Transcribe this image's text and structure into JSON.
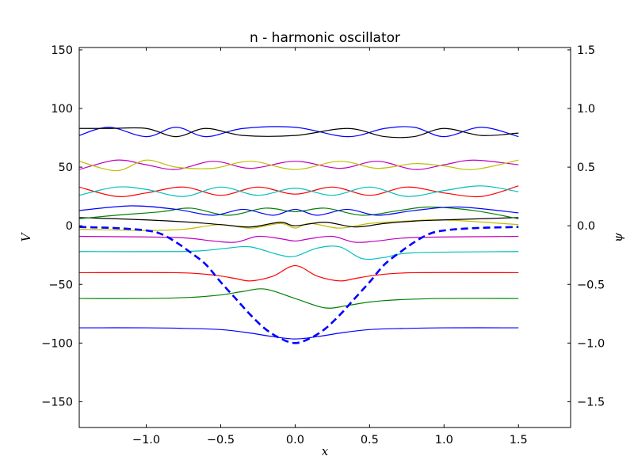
{
  "chart_data": {
    "type": "line",
    "title": "n - harmonic oscillator",
    "xlabel": "x",
    "ylabel": "V",
    "y2label": "ψ",
    "xlim": [
      -1.45,
      1.85
    ],
    "ylim": [
      -172,
      152
    ],
    "y2lim": [
      -1.72,
      1.52
    ],
    "x_ticks": [
      -1.0,
      -0.5,
      0.0,
      0.5,
      1.0,
      1.5
    ],
    "x_tick_labels": [
      "−1.0",
      "−0.5",
      "0.0",
      "0.5",
      "1.0",
      "1.5"
    ],
    "y_ticks": [
      150,
      100,
      50,
      0,
      -50,
      -100,
      -150
    ],
    "y_tick_labels": [
      "150",
      "100",
      "50",
      "0",
      "−50",
      "−100",
      "−150"
    ],
    "y2_ticks": [
      1.5,
      1.0,
      0.5,
      0.0,
      -0.5,
      -1.0,
      -1.5
    ],
    "y2_tick_labels": [
      "1.5",
      "1.0",
      "0.5",
      "0.0",
      "−0.5",
      "−1.0",
      "−1.5"
    ],
    "grid": false,
    "legend": "none",
    "potential": {
      "style": "dashed",
      "color": "#0000ff",
      "x": [
        -1.45,
        -1.2,
        -1.0,
        -0.9,
        -0.8,
        -0.7,
        -0.6,
        -0.5,
        -0.4,
        -0.3,
        -0.2,
        -0.1,
        0.0,
        0.1,
        0.2,
        0.3,
        0.4,
        0.5,
        0.6,
        0.7,
        0.8,
        0.9,
        1.0,
        1.2,
        1.5
      ],
      "y": [
        -1,
        -2,
        -4,
        -7,
        -14,
        -23,
        -33,
        -48,
        -62,
        -76,
        -88,
        -96,
        -100,
        -96,
        -88,
        -76,
        -62,
        -48,
        -33,
        -23,
        -14,
        -7,
        -4,
        -2,
        -1
      ]
    },
    "eigenstates": [
      {
        "n": 0,
        "energy": -87.0,
        "color": "#0000ff",
        "amp": 9.5,
        "x": [
          -1.45,
          -1.0,
          -0.75,
          -0.5,
          -0.3,
          -0.15,
          0.0,
          0.15,
          0.3,
          0.5,
          0.75,
          1.0,
          1.5
        ],
        "y": [
          -87,
          -87,
          -87.5,
          -88.5,
          -91.5,
          -94.5,
          -96.5,
          -94.5,
          -91.5,
          -88.5,
          -87.5,
          -87,
          -87
        ]
      },
      {
        "n": 1,
        "energy": -62.0,
        "color": "#008000",
        "amp": 9.0,
        "x": [
          -1.45,
          -1.0,
          -0.7,
          -0.5,
          -0.35,
          -0.2,
          0.0,
          0.2,
          0.35,
          0.5,
          0.7,
          1.0,
          1.5
        ],
        "y": [
          -62,
          -62,
          -61,
          -59,
          -56,
          -54,
          -62,
          -70,
          -68,
          -65,
          -63,
          -62,
          -62
        ]
      },
      {
        "n": 2,
        "energy": -40.0,
        "color": "#ff0000",
        "amp": 7.0,
        "x": [
          -1.45,
          -0.8,
          -0.55,
          -0.4,
          -0.3,
          -0.15,
          0.0,
          0.15,
          0.3,
          0.4,
          0.55,
          0.8,
          1.5
        ],
        "y": [
          -40,
          -40,
          -42,
          -45,
          -47,
          -43,
          -34,
          -43,
          -47,
          -45,
          -42,
          -40,
          -40
        ]
      },
      {
        "n": 3,
        "energy": -22.0,
        "color": "#00bfbf",
        "amp": 6.0,
        "x": [
          -1.45,
          -0.8,
          -0.6,
          -0.45,
          -0.3,
          -0.1,
          0.0,
          0.15,
          0.3,
          0.45,
          0.6,
          0.8,
          1.5
        ],
        "y": [
          -22,
          -22,
          -21,
          -19,
          -18,
          -25,
          -26,
          -19,
          -18,
          -28,
          -27,
          -23,
          -22
        ]
      },
      {
        "n": 4,
        "energy": -9.0,
        "color": "#bf00bf",
        "amp": 5.0,
        "x": [
          -1.45,
          -0.8,
          -0.55,
          -0.4,
          -0.25,
          -0.1,
          0.0,
          0.1,
          0.25,
          0.4,
          0.55,
          0.8,
          1.5
        ],
        "y": [
          -9,
          -10,
          -13,
          -14,
          -9,
          -11,
          -13,
          -11,
          -9,
          -14,
          -13,
          -10,
          -9
        ]
      },
      {
        "n": 5,
        "energy": -2.0,
        "color": "#bfbf00",
        "amp": 4.0,
        "x": [
          -1.45,
          -1.0,
          -0.75,
          -0.5,
          -0.3,
          -0.1,
          0.0,
          0.1,
          0.3,
          0.5,
          0.75,
          1.0,
          1.5
        ],
        "y": [
          -3,
          -4,
          -3,
          1,
          -2,
          2,
          -2,
          2,
          -2,
          2,
          4,
          5,
          1
        ]
      },
      {
        "n": 6,
        "energy": 3.0,
        "color": "#000000",
        "amp": 4.0,
        "x": [
          -1.45,
          -1.0,
          -0.7,
          -0.5,
          -0.3,
          -0.1,
          0.0,
          0.2,
          0.4,
          0.6,
          0.8,
          1.0,
          1.5
        ],
        "y": [
          7,
          5,
          3,
          1,
          -1,
          3,
          0,
          3,
          -1,
          2,
          4,
          5,
          7
        ]
      },
      {
        "n": 7,
        "energy": 11.0,
        "color": "#008000",
        "amp": 4.5,
        "x": [
          -1.45,
          -1.2,
          -0.9,
          -0.7,
          -0.45,
          -0.2,
          0.0,
          0.2,
          0.45,
          0.7,
          0.9,
          1.2,
          1.5
        ],
        "y": [
          6,
          9,
          12,
          15,
          9,
          15,
          12,
          15,
          9,
          13,
          16,
          13,
          6
        ]
      },
      {
        "n": 8,
        "energy": 13.0,
        "color": "#0000ff",
        "amp": 4.5,
        "x": [
          -1.45,
          -1.1,
          -0.8,
          -0.55,
          -0.35,
          -0.15,
          0.0,
          0.15,
          0.35,
          0.55,
          0.8,
          1.1,
          1.5
        ],
        "y": [
          13,
          17,
          14,
          9,
          14,
          9,
          14,
          9,
          14,
          9,
          13,
          16,
          11
        ]
      },
      {
        "n": 9,
        "energy": 30.0,
        "color": "#ff0000",
        "amp": 4.5,
        "x": [
          -1.45,
          -1.2,
          -1.0,
          -0.75,
          -0.5,
          -0.25,
          0.0,
          0.25,
          0.5,
          0.75,
          1.0,
          1.25,
          1.5
        ],
        "y": [
          33,
          25,
          28,
          33,
          26,
          33,
          27,
          33,
          26,
          33,
          28,
          25,
          34
        ]
      },
      {
        "n": 10,
        "energy": 30.0,
        "color": "#00bfbf",
        "amp": 4.5,
        "x": [
          -1.45,
          -1.2,
          -1.0,
          -0.75,
          -0.5,
          -0.25,
          0.0,
          0.25,
          0.5,
          0.75,
          1.0,
          1.25,
          1.5
        ],
        "y": [
          26,
          33,
          31,
          25,
          33,
          26,
          32,
          26,
          33,
          25,
          30,
          34,
          29
        ]
      },
      {
        "n": 11,
        "energy": 52.0,
        "color": "#bf00bf",
        "amp": 5.0,
        "x": [
          -1.45,
          -1.2,
          -1.0,
          -0.8,
          -0.55,
          -0.3,
          0.0,
          0.3,
          0.55,
          0.8,
          1.0,
          1.2,
          1.5
        ],
        "y": [
          48,
          56,
          52,
          48,
          55,
          49,
          55,
          49,
          55,
          48,
          52,
          56,
          52
        ]
      },
      {
        "n": 12,
        "energy": 52.0,
        "color": "#bfbf00",
        "amp": 5.0,
        "x": [
          -1.45,
          -1.2,
          -1.0,
          -0.8,
          -0.55,
          -0.3,
          0.0,
          0.3,
          0.55,
          0.8,
          1.0,
          1.2,
          1.5
        ],
        "y": [
          55,
          47,
          56,
          50,
          49,
          55,
          48,
          55,
          49,
          53,
          51,
          48,
          56
        ]
      },
      {
        "n": 13,
        "energy": 80.0,
        "color": "#0000ff",
        "amp": 5.0,
        "x": [
          -1.45,
          -1.25,
          -1.0,
          -0.8,
          -0.6,
          -0.35,
          0.0,
          0.35,
          0.6,
          0.8,
          1.0,
          1.25,
          1.5
        ],
        "y": [
          77,
          84,
          76,
          84,
          76,
          83,
          84,
          76,
          83,
          84,
          76,
          84,
          76
        ]
      },
      {
        "n": 14,
        "energy": 80.0,
        "color": "#000000",
        "amp": 5.0,
        "x": [
          -1.45,
          -1.25,
          -1.0,
          -0.8,
          -0.6,
          -0.35,
          0.0,
          0.35,
          0.6,
          0.8,
          1.0,
          1.25,
          1.5
        ],
        "y": [
          83,
          83,
          83,
          76,
          83,
          77,
          77,
          83,
          76,
          76,
          83,
          77,
          79
        ]
      }
    ]
  }
}
